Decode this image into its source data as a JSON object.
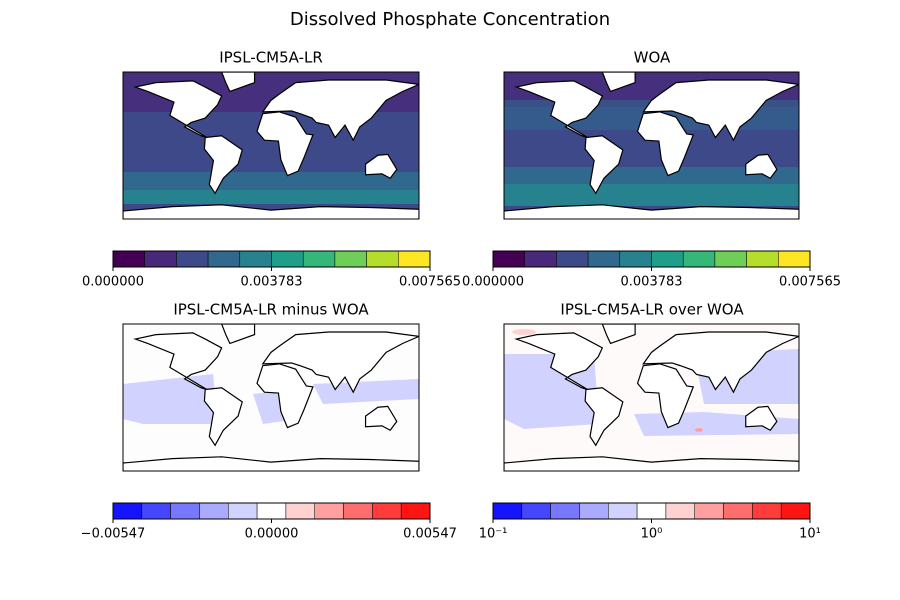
{
  "title": "Dissolved Phosphate Concentration",
  "chart_data": [
    {
      "type": "map",
      "title": "IPSL-CM5A-LR",
      "colors": [
        "#440154",
        "#482878",
        "#3e4989",
        "#31688e",
        "#26828e",
        "#1f9e89",
        "#35b779",
        "#6ece58",
        "#b5de2b",
        "#fde725"
      ],
      "clim": [
        0,
        0.007565
      ],
      "ticks": [
        {
          "value": 0,
          "label": "0.000000"
        },
        0.003783,
        0.007565
      ]
    },
    {
      "type": "map",
      "title": "WOA",
      "colors": [
        "#440154",
        "#482878",
        "#3e4989",
        "#31688e",
        "#26828e",
        "#1f9e89",
        "#35b779",
        "#6ece58",
        "#b5de2b",
        "#fde725"
      ],
      "clim": [
        0,
        0.007565
      ],
      "ticks": [
        {
          "value": 0,
          "label": "0.000000"
        },
        0.003783,
        0.007565
      ]
    },
    {
      "type": "map",
      "title": "IPSL-CM5A-LR minus WOA",
      "colors": [
        "#1414ff",
        "#4646ff",
        "#7878ff",
        "#aaaaff",
        "#d2d2ff",
        "#ffffff",
        "#ffd2d2",
        "#ffa0a0",
        "#ff6e6e",
        "#ff3c3c",
        "#ff1414"
      ],
      "clim": [
        -0.00547,
        0.00547
      ],
      "ticks": [
        {
          "value": -0.00547,
          "label": "−0.00547"
        },
        {
          "value": 0,
          "label": "0.00000"
        },
        0.00547
      ]
    },
    {
      "type": "map",
      "title": "IPSL-CM5A-LR over WOA",
      "log_scale": true,
      "colors": [
        "#1414ff",
        "#4646ff",
        "#7878ff",
        "#aaaaff",
        "#d2d2ff",
        "#ffffff",
        "#ffd2d2",
        "#ffa0a0",
        "#ff6e6e",
        "#ff3c3c",
        "#ff1414"
      ],
      "clim": [
        0.1,
        10
      ],
      "ticks": [
        {
          "value": 0.1,
          "label": "10⁻¹"
        },
        {
          "value": 1,
          "label": "10⁰"
        },
        {
          "value": 10,
          "label": "10¹"
        }
      ]
    }
  ]
}
